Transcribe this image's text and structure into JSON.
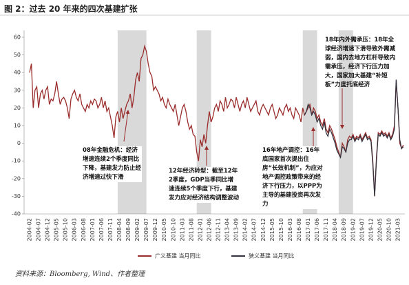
{
  "chart_data": {
    "type": "line",
    "title": "图 2：过去 20 年来的四次基建扩张",
    "source": "资料来源：Bloomberg, Wind、作者整理",
    "categories": [
      "2004-02",
      null,
      null,
      null,
      null,
      "2004-07",
      null,
      null,
      null,
      null,
      "2004-12",
      null,
      null,
      null,
      null,
      "2005-05",
      null,
      null,
      null,
      null,
      "2005-10",
      null,
      null,
      null,
      null,
      "2006-03",
      null,
      null,
      null,
      null,
      "2006-08",
      null,
      null,
      null,
      null,
      "2007-01",
      null,
      null,
      null,
      null,
      "2007-06",
      null,
      null,
      null,
      null,
      "2007-11",
      null,
      null,
      null,
      null,
      "2008-04",
      null,
      null,
      null,
      null,
      "2008-09",
      null,
      null,
      null,
      null,
      "2009-02",
      null,
      null,
      null,
      null,
      "2009-07",
      null,
      null,
      null,
      null,
      "2009-12",
      null,
      null,
      null,
      null,
      "2010-05",
      null,
      null,
      null,
      null,
      "2010-10",
      null,
      null,
      null,
      null,
      "2011-03",
      null,
      null,
      null,
      null,
      "2011-08",
      null,
      null,
      null,
      null,
      "2012-01",
      null,
      null,
      null,
      null,
      "2012-06",
      null,
      null,
      null,
      null,
      "2012-11",
      null,
      null,
      null,
      null,
      "2013-04",
      null,
      null,
      null,
      null,
      "2013-09",
      null,
      null,
      null,
      null,
      "2014-02",
      null,
      null,
      null,
      null,
      "2014-07",
      null,
      null,
      null,
      null,
      "2014-12",
      null,
      null,
      null,
      null,
      "2015-05",
      null,
      null,
      null,
      null,
      "2015-10",
      null,
      null,
      null,
      null,
      "2016-03",
      null,
      null,
      null,
      null,
      "2016-08",
      null,
      null,
      null,
      null,
      "2017-01",
      null,
      null,
      null,
      null,
      "2017-06",
      null,
      null,
      null,
      null,
      "2017-11",
      null,
      null,
      null,
      null,
      "2018-04",
      null,
      null,
      null,
      null,
      "2018-09",
      null,
      null,
      null,
      null,
      "2019-02",
      null,
      null,
      null,
      null,
      "2019-07",
      null,
      null,
      null,
      null,
      "2019-12",
      null,
      null,
      null,
      null,
      "2020-05",
      null,
      null,
      null,
      null,
      "2020-10",
      null,
      null,
      null,
      null,
      "2021-03",
      null,
      null,
      null
    ],
    "series": [
      {
        "name": "广义基建 当月同比",
        "color": "#9b2c2c",
        "values": [
          40,
          45,
          20,
          30,
          32,
          20,
          28,
          30,
          25,
          30,
          32,
          22,
          25,
          24,
          28,
          35,
          28,
          22,
          25,
          26,
          24,
          20,
          14,
          25,
          28,
          30,
          26,
          24,
          28,
          22,
          20,
          18,
          22,
          20,
          24,
          22,
          25,
          24,
          20,
          22,
          26,
          20,
          24,
          18,
          20,
          15,
          10,
          3,
          15,
          18,
          12,
          20,
          14,
          18,
          22,
          24,
          28,
          20,
          26,
          36,
          40,
          35,
          48,
          50,
          55,
          52,
          45,
          40,
          38,
          30,
          32,
          30,
          28,
          24,
          26,
          22,
          20,
          25,
          22,
          20,
          18,
          22,
          16,
          10,
          15,
          20,
          22,
          18,
          12,
          8,
          10,
          5,
          4,
          -5,
          -10,
          2,
          -2,
          5,
          0,
          10,
          18,
          12,
          15,
          20,
          22,
          18,
          24,
          22,
          18,
          26,
          20,
          22,
          25,
          24,
          20,
          26,
          22,
          18,
          22,
          24,
          20,
          26,
          22,
          18,
          20,
          22,
          24,
          18,
          16,
          20,
          22,
          20,
          18,
          16,
          20,
          22,
          18,
          14,
          16,
          20,
          18,
          16,
          20,
          22,
          18,
          20,
          16,
          14,
          20,
          18,
          16,
          12,
          20,
          16,
          18,
          20,
          22,
          16,
          20,
          18,
          14,
          16,
          12,
          10,
          14,
          8,
          6,
          10,
          8,
          5,
          2,
          -2,
          -5,
          -8,
          0,
          -2,
          -5,
          2,
          4,
          3,
          5,
          2,
          4,
          3,
          5,
          2,
          4,
          6,
          3,
          4,
          2,
          -10,
          -30,
          -8,
          6,
          5,
          7,
          5,
          6,
          4,
          6,
          3,
          5,
          10,
          35,
          20,
          0,
          -3,
          -1
        ]
      },
      {
        "name": "狭义基建 当月同比",
        "color": "#33333f",
        "values": [
          null,
          null,
          null,
          null,
          null,
          null,
          null,
          null,
          null,
          null,
          null,
          null,
          null,
          null,
          null,
          null,
          null,
          null,
          null,
          null,
          null,
          null,
          null,
          null,
          null,
          null,
          null,
          null,
          null,
          null,
          null,
          null,
          null,
          null,
          null,
          null,
          null,
          null,
          null,
          null,
          null,
          null,
          null,
          null,
          null,
          null,
          null,
          null,
          null,
          null,
          null,
          null,
          null,
          null,
          null,
          null,
          null,
          null,
          null,
          null,
          null,
          null,
          null,
          null,
          null,
          null,
          null,
          null,
          null,
          null,
          null,
          null,
          null,
          null,
          null,
          null,
          null,
          null,
          null,
          null,
          null,
          null,
          null,
          null,
          null,
          null,
          null,
          null,
          null,
          null,
          null,
          null,
          null,
          null,
          null,
          null,
          null,
          null,
          null,
          null,
          null,
          null,
          null,
          null,
          null,
          null,
          null,
          null,
          null,
          null,
          null,
          null,
          null,
          null,
          null,
          null,
          null,
          null,
          null,
          null,
          null,
          null,
          null,
          null,
          null,
          null,
          null,
          null,
          null,
          null,
          null,
          null,
          null,
          null,
          null,
          null,
          null,
          null,
          null,
          null,
          null,
          null,
          null,
          null,
          null,
          null,
          null,
          null,
          null,
          null,
          null,
          null,
          null,
          16,
          18,
          22,
          20,
          16,
          18,
          16,
          12,
          14,
          10,
          8,
          12,
          6,
          4,
          8,
          6,
          3,
          0,
          -4,
          -6,
          -8,
          -2,
          -3,
          -5,
          0,
          2,
          2,
          4,
          1,
          3,
          2,
          4,
          1,
          3,
          5,
          2,
          3,
          1,
          -12,
          -30,
          -10,
          5,
          4,
          6,
          4,
          5,
          3,
          5,
          2,
          4,
          8,
          36,
          20,
          2,
          -3,
          -2
        ]
      }
    ],
    "ylim": [
      -40,
      60
    ],
    "yticks": [
      -40,
      -30,
      -20,
      -10,
      0,
      10,
      20,
      30,
      40,
      50,
      60
    ],
    "grid": false,
    "highlight_spans": [
      [
        49,
        65
      ],
      [
        93,
        101
      ],
      [
        152,
        160
      ],
      [
        172,
        180
      ]
    ],
    "annotations": [
      "08年金融危机：经济增速连续2个季度同比下降，基建发力防止经济增速过快下滑",
      "12年经济转型：截至12年2季度，GDP当季同比增速连续5个季度下行，基建发力应对经济结构调整波动",
      "16年地产调控：16年底国家首次提出住房“长效机制”，为应对地产调控政策带来的经济下行压力，以PPP为主导的基建投资再次发力",
      "18年内外需承压：18年全球经济增速下滑导致外需减弱，国内去地方杠杆导致内需承压，经济下行压力加大，国家加大基建“补短板”力度托底经济"
    ]
  }
}
